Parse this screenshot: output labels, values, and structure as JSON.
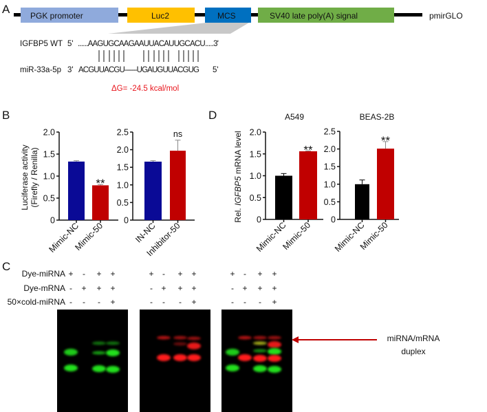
{
  "panelA": {
    "letter": "A",
    "elements": [
      {
        "label": "PGK promoter",
        "color": "#8faadc"
      },
      {
        "label": "Luc2",
        "color": "#ffc000"
      },
      {
        "label": "MCS",
        "color": "#0070c0"
      },
      {
        "label": "SV40 late poly(A) signal",
        "color": "#70ad47"
      }
    ],
    "vector": "pmirGLO",
    "wt_label": "IGFBP5 WT",
    "wt_5": "5'",
    "wt_seq": "......AAGUGCAAGAAUUACAUUGCACU.....3'",
    "mir_label": "miR-33a-5p",
    "mir_3": "3'",
    "mir_seq": "ACGUUACGU------UGAUGUUACGUG",
    "mir_5": "5'",
    "dg": "ΔG= -24.5 kcal/mol",
    "dg_color": "#e8141b"
  },
  "panelB": {
    "letter": "B",
    "ylabel_line1": "Luciferase activity",
    "ylabel_line2": "(Firefly / Renilla)"
  },
  "panelD": {
    "letter": "D",
    "ylabel_prefix": "Rel. ",
    "ylabel_gene": "IGFBP5",
    "ylabel_suffix": " mRNA level"
  },
  "panelC": {
    "letter": "C",
    "rows": [
      {
        "label": "Dye-miRNA",
        "values": [
          "+",
          "-",
          "+",
          "+"
        ]
      },
      {
        "label": "Dye-mRNA",
        "values": [
          "-",
          "+",
          "+",
          "+"
        ]
      },
      {
        "label": "50×cold-miRNA",
        "values": [
          "-",
          "-",
          "-",
          "+"
        ]
      }
    ],
    "arrow_label_line1": "miRNA/mRNA",
    "arrow_label_line2": "duplex",
    "arrow_color": "#c00000"
  },
  "chart_data": [
    {
      "type": "bar",
      "title": "",
      "ylabel": "Luciferase activity (Firefly / Renilla)",
      "categories": [
        "Mimic-NC",
        "Mimic-50"
      ],
      "values": [
        1.33,
        0.79
      ],
      "errors": [
        0.02,
        0.02
      ],
      "colors": [
        "#0a0a96",
        "#c00000"
      ],
      "annotations": [
        "",
        "**"
      ],
      "yticks": [
        "0",
        "0.5",
        "1.0",
        "1.5",
        "2.0"
      ],
      "ylim": [
        0,
        2.0
      ]
    },
    {
      "type": "bar",
      "title": "",
      "categories": [
        "IN-NC",
        "Inhibitor-50"
      ],
      "values": [
        1.66,
        1.97
      ],
      "errors": [
        0.03,
        0.3
      ],
      "colors": [
        "#0a0a96",
        "#c00000"
      ],
      "annotations": [
        "",
        "ns"
      ],
      "yticks": [
        "0",
        "0.5",
        "1.0",
        "1.5",
        "2.0",
        "2.5"
      ],
      "ylim": [
        0,
        2.5
      ]
    },
    {
      "type": "bar",
      "title": "A549",
      "ylabel": "Rel. IGFBP5 mRNA level",
      "categories": [
        "Mimic-NC",
        "Mimic-50"
      ],
      "values": [
        1.0,
        1.56
      ],
      "errors": [
        0.05,
        0.01
      ],
      "colors": [
        "#000000",
        "#c00000"
      ],
      "annotations": [
        "",
        "**"
      ],
      "yticks": [
        "0",
        "0.5",
        "1.0",
        "1.5",
        "2.0"
      ],
      "ylim": [
        0,
        2.0
      ]
    },
    {
      "type": "bar",
      "title": "BEAS-2B",
      "categories": [
        "Mimic-NC",
        "Mimic-50"
      ],
      "values": [
        1.0,
        2.01
      ],
      "errors": [
        0.12,
        0.2
      ],
      "colors": [
        "#000000",
        "#c00000"
      ],
      "annotations": [
        "",
        "**"
      ],
      "yticks": [
        "0",
        "0.5",
        "1.0",
        "1.5",
        "2.0",
        "2.5"
      ],
      "ylim": [
        0,
        2.5
      ]
    }
  ]
}
